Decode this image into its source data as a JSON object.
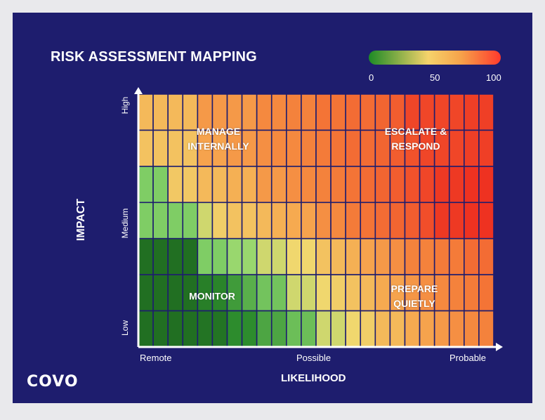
{
  "title": "RISK ASSESSMENT MAPPING",
  "scale": {
    "min_label": "0",
    "mid_label": "50",
    "max_label": "100",
    "colors": [
      "#1d8a26",
      "#f5d36b",
      "#f6a24a",
      "#ff3a2c"
    ]
  },
  "logo": "COVO",
  "chart_data": {
    "type": "heatmap",
    "title": "RISK ASSESSMENT MAPPING",
    "xlabel": "LIKELIHOOD",
    "ylabel": "IMPACT",
    "x_ticks": [
      "Remote",
      "Possible",
      "Probable"
    ],
    "y_ticks": [
      "Low",
      "Medium",
      "High"
    ],
    "value_range": [
      0,
      100
    ],
    "columns": 24,
    "rows": 7,
    "quadrants": [
      {
        "label": "MANAGE\nINTERNALLY",
        "position": "top-left"
      },
      {
        "label": "ESCALATE &\nRESPOND",
        "position": "top-right"
      },
      {
        "label": "MONITOR",
        "position": "bottom-left"
      },
      {
        "label": "PREPARE\nQUIETLY",
        "position": "bottom-right"
      }
    ],
    "values_top_to_bottom": [
      [
        55,
        55,
        55,
        55,
        65,
        65,
        65,
        65,
        70,
        70,
        72,
        72,
        76,
        76,
        78,
        78,
        80,
        82,
        88,
        88,
        88,
        88,
        90,
        90
      ],
      [
        52,
        52,
        52,
        52,
        62,
        62,
        65,
        65,
        68,
        70,
        70,
        72,
        74,
        76,
        78,
        78,
        80,
        82,
        85,
        88,
        88,
        88,
        90,
        90
      ],
      [
        28,
        28,
        50,
        50,
        55,
        55,
        58,
        58,
        65,
        65,
        68,
        70,
        72,
        74,
        76,
        78,
        80,
        82,
        85,
        88,
        92,
        92,
        94,
        94
      ],
      [
        28,
        28,
        28,
        28,
        40,
        48,
        52,
        52,
        55,
        58,
        60,
        62,
        68,
        70,
        74,
        76,
        78,
        80,
        82,
        86,
        92,
        92,
        94,
        94
      ],
      [
        4,
        4,
        4,
        4,
        28,
        28,
        32,
        32,
        40,
        40,
        45,
        45,
        52,
        55,
        58,
        62,
        65,
        68,
        72,
        72,
        74,
        74,
        78,
        78
      ],
      [
        4,
        4,
        4,
        4,
        10,
        12,
        18,
        22,
        26,
        26,
        40,
        40,
        45,
        48,
        52,
        55,
        60,
        62,
        66,
        68,
        70,
        72,
        74,
        76
      ],
      [
        4,
        4,
        4,
        4,
        6,
        6,
        15,
        15,
        20,
        20,
        25,
        25,
        40,
        40,
        45,
        48,
        55,
        55,
        60,
        62,
        65,
        68,
        70,
        72
      ]
    ]
  }
}
